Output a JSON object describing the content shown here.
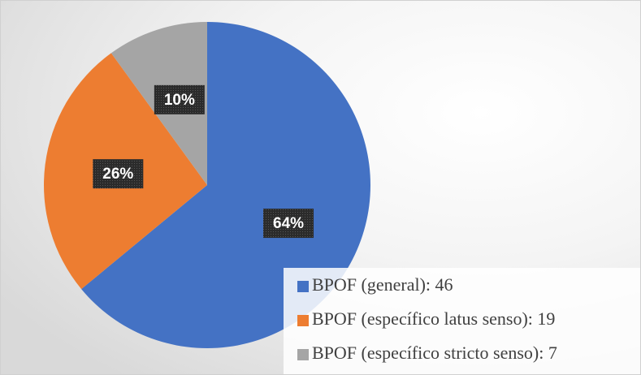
{
  "chart_data": {
    "type": "pie",
    "categories": [
      "BPOF (general): 46",
      "BPOF (específico latus senso): 19",
      "BPOF (específico stricto senso): 7"
    ],
    "values": [
      64,
      26,
      10
    ],
    "value_labels": [
      "64%",
      "26%",
      "10%"
    ],
    "colors": [
      "#4472c4",
      "#ed7d31",
      "#a5a5a5"
    ],
    "legend_position": "bottom-right"
  }
}
